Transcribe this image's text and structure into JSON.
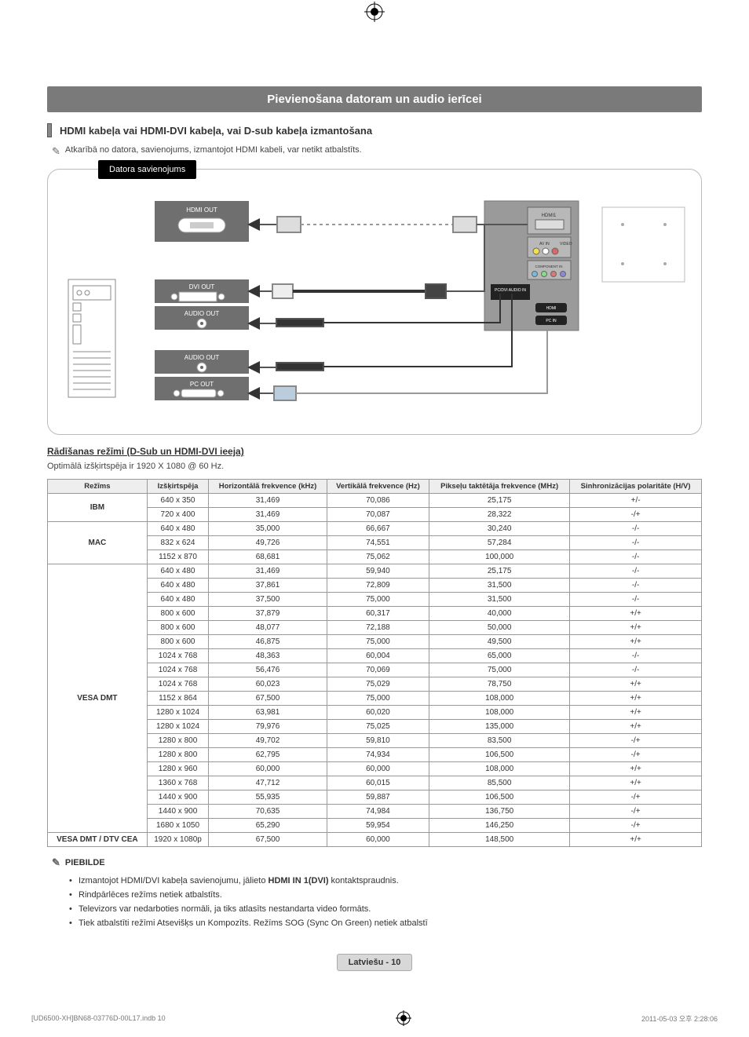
{
  "crop_mark_color": "#000",
  "banner": {
    "text": "Pievienošana datoram un audio ierīcei",
    "bg": "#7a7a7a",
    "fg": "#ffffff"
  },
  "sub_heading": "HDMI kabeļa vai HDMI-DVI kabeļa, vai D-sub kabeļa izmantošana",
  "pre_note": "Atkarībā no datora, savienojums, izmantojot HDMI kabeli, var netikt atbalstīts.",
  "diagram": {
    "title": "Datora savienojums",
    "port_labels": {
      "hdmi_out": "HDMI OUT",
      "dvi_out": "DVI OUT",
      "audio_out_1": "AUDIO OUT",
      "audio_out_2": "AUDIO OUT",
      "pc_out": "PC OUT"
    },
    "tv_labels": {
      "hdmi1": "HDMI1",
      "av_in": "AV IN",
      "video": "VIDEO",
      "component_in": "COMPONENT IN",
      "pc_dvi_audio_in": "PC/DVI AUDIO IN",
      "hdmi_w": "HDMI",
      "pc_in": "PC IN"
    },
    "colors": {
      "port_box_bg": "#6f6f6f",
      "port_box_fg": "#ffffff",
      "tv_bg": "#9a9a9a",
      "cable_stroke": "#555555",
      "cable_dotted": "#999999",
      "pc_tower_stroke": "#888888"
    }
  },
  "modes_section": {
    "heading": "Rādīšanas režīmi (D-Sub un HDMI-DVI ieeja)",
    "caption": "Optimālā izšķirtspēja ir 1920 X 1080 @ 60 Hz."
  },
  "table": {
    "header_bg": "#eeeeee",
    "border_color": "#999999",
    "columns": [
      "Režīms",
      "Izšķirtspēja",
      "Horizontālā frekvence (kHz)",
      "Vertikālā frekvence (Hz)",
      "Pikseļu taktētāja frekvence (MHz)",
      "Sinhronizācijas polaritāte (H/V)"
    ],
    "groups": [
      {
        "label": "IBM",
        "rows": [
          [
            "640 x 350",
            "31,469",
            "70,086",
            "25,175",
            "+/-"
          ],
          [
            "720 x 400",
            "31,469",
            "70,087",
            "28,322",
            "-/+"
          ]
        ]
      },
      {
        "label": "MAC",
        "rows": [
          [
            "640 x 480",
            "35,000",
            "66,667",
            "30,240",
            "-/-"
          ],
          [
            "832 x 624",
            "49,726",
            "74,551",
            "57,284",
            "-/-"
          ],
          [
            "1152 x 870",
            "68,681",
            "75,062",
            "100,000",
            "-/-"
          ]
        ]
      },
      {
        "label": "VESA DMT",
        "rows": [
          [
            "640 x 480",
            "31,469",
            "59,940",
            "25,175",
            "-/-"
          ],
          [
            "640 x 480",
            "37,861",
            "72,809",
            "31,500",
            "-/-"
          ],
          [
            "640 x 480",
            "37,500",
            "75,000",
            "31,500",
            "-/-"
          ],
          [
            "800 x 600",
            "37,879",
            "60,317",
            "40,000",
            "+/+"
          ],
          [
            "800 x 600",
            "48,077",
            "72,188",
            "50,000",
            "+/+"
          ],
          [
            "800 x 600",
            "46,875",
            "75,000",
            "49,500",
            "+/+"
          ],
          [
            "1024 x 768",
            "48,363",
            "60,004",
            "65,000",
            "-/-"
          ],
          [
            "1024 x 768",
            "56,476",
            "70,069",
            "75,000",
            "-/-"
          ],
          [
            "1024 x 768",
            "60,023",
            "75,029",
            "78,750",
            "+/+"
          ],
          [
            "1152 x 864",
            "67,500",
            "75,000",
            "108,000",
            "+/+"
          ],
          [
            "1280 x 1024",
            "63,981",
            "60,020",
            "108,000",
            "+/+"
          ],
          [
            "1280 x 1024",
            "79,976",
            "75,025",
            "135,000",
            "+/+"
          ],
          [
            "1280 x 800",
            "49,702",
            "59,810",
            "83,500",
            "-/+"
          ],
          [
            "1280 x 800",
            "62,795",
            "74,934",
            "106,500",
            "-/+"
          ],
          [
            "1280 x 960",
            "60,000",
            "60,000",
            "108,000",
            "+/+"
          ],
          [
            "1360 x 768",
            "47,712",
            "60,015",
            "85,500",
            "+/+"
          ],
          [
            "1440 x 900",
            "55,935",
            "59,887",
            "106,500",
            "-/+"
          ],
          [
            "1440 x 900",
            "70,635",
            "74,984",
            "136,750",
            "-/+"
          ],
          [
            "1680 x 1050",
            "65,290",
            "59,954",
            "146,250",
            "-/+"
          ]
        ]
      },
      {
        "label": "VESA DMT / DTV CEA",
        "rows": [
          [
            "1920 x 1080p",
            "67,500",
            "60,000",
            "148,500",
            "+/+"
          ]
        ]
      }
    ]
  },
  "notes": {
    "title": "PIEBILDE",
    "items": [
      {
        "pre": "Izmantojot HDMI/DVI kabeļa savienojumu, jālieto ",
        "bold": "HDMI IN 1(DVI)",
        "post": " kontaktspraudnis."
      },
      {
        "pre": "Rindpārlēces režīms netiek atbalstīts.",
        "bold": "",
        "post": ""
      },
      {
        "pre": "Televizors var nedarboties normāli, ja tiks atlasīts nestandarta video formāts.",
        "bold": "",
        "post": ""
      },
      {
        "pre": "Tiek atbalstīti režīmi Atsevišķs un Kompozīts. Režīms SOG (Sync On Green) netiek atbalstī",
        "bold": "",
        "post": ""
      }
    ]
  },
  "page_lang": "Latviešu - 10",
  "print_footer": {
    "file": "[UD6500-XH]BN68-03776D-00L17.indb   10",
    "timestamp": "2011-05-03   오후 2:28:06"
  }
}
